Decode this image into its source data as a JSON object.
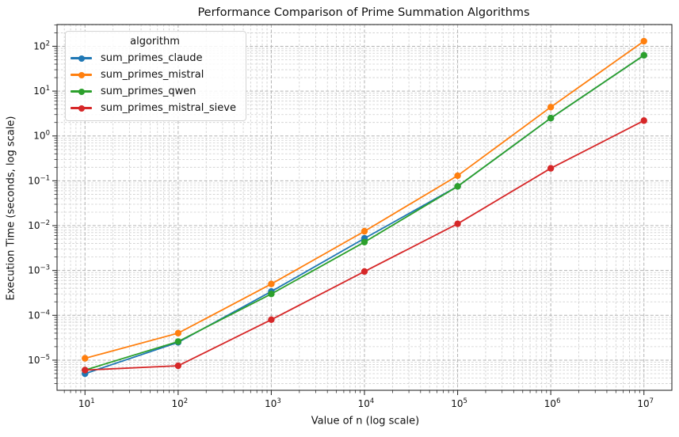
{
  "chart_data": {
    "type": "line",
    "title": "Performance Comparison of Prime Summation Algorithms",
    "xlabel": "Value of n (log scale)",
    "ylabel": "Execution Time (seconds, log scale)",
    "legend_title": "algorithm",
    "legend_position": "upper left",
    "x_scale": "log",
    "y_scale": "log",
    "grid": "both major and minor, dashed gray",
    "x": [
      10,
      100,
      1000,
      10000,
      100000,
      1000000,
      10000000
    ],
    "series": [
      {
        "name": "sum_primes_claude",
        "color": "#1f77b4",
        "values": [
          5e-06,
          2.5e-05,
          0.00034,
          0.0052,
          0.075,
          2.5,
          63
        ]
      },
      {
        "name": "sum_primes_mistral",
        "color": "#ff7f0e",
        "values": [
          1.1e-05,
          4e-05,
          0.0005,
          0.0075,
          0.13,
          4.4,
          130
        ]
      },
      {
        "name": "sum_primes_qwen",
        "color": "#2ca02c",
        "values": [
          6e-06,
          2.6e-05,
          0.0003,
          0.0043,
          0.075,
          2.5,
          63
        ]
      },
      {
        "name": "sum_primes_mistral_sieve",
        "color": "#d62728",
        "values": [
          6e-06,
          7.5e-06,
          8e-05,
          0.00095,
          0.011,
          0.19,
          2.2
        ]
      }
    ],
    "x_tick_exponents": [
      1,
      2,
      3,
      4,
      5,
      6,
      7
    ],
    "y_tick_exponents": [
      2,
      1,
      0,
      -1,
      -2,
      -3,
      -4,
      -5
    ],
    "xlim_log": [
      0.7,
      7.3
    ],
    "ylim_log": [
      -5.672,
      2.485
    ],
    "colors": {
      "grid_major": "#b3b3b3",
      "grid_minor": "#cccccc",
      "spine": "#2f2f2f",
      "text": "#111111"
    }
  }
}
